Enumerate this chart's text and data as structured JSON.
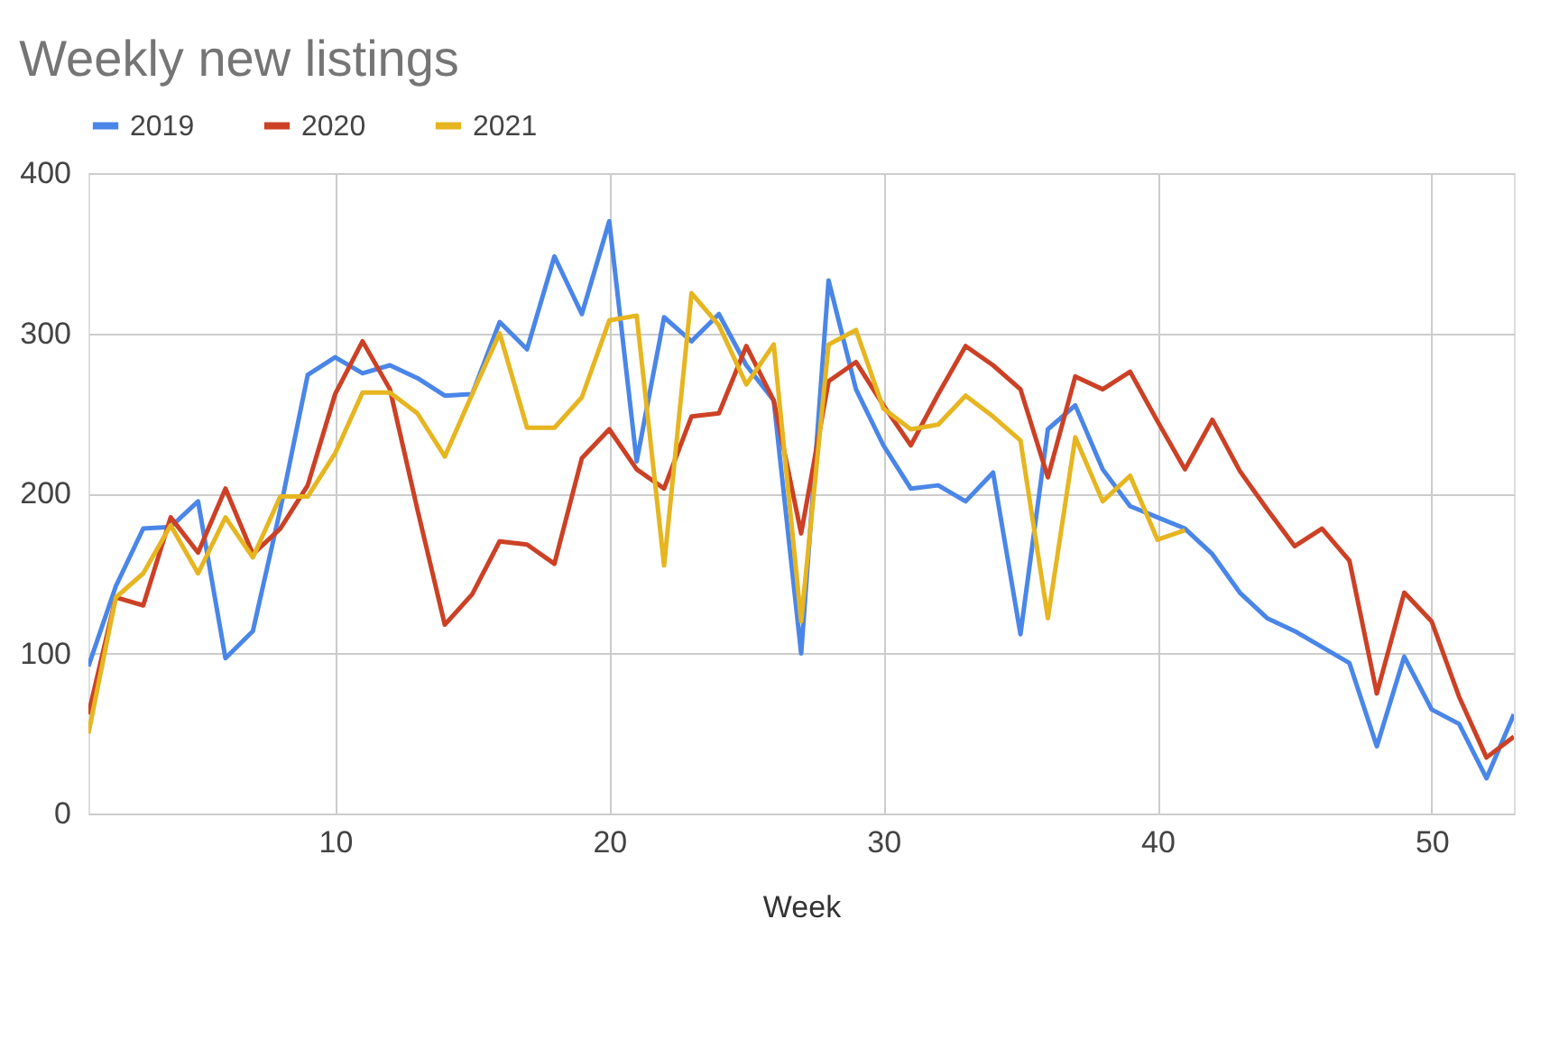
{
  "chart_data": {
    "type": "line",
    "title": "Weekly new listings",
    "xlabel": "Week",
    "x": [
      1,
      2,
      3,
      4,
      5,
      6,
      7,
      8,
      9,
      10,
      11,
      12,
      13,
      14,
      15,
      16,
      17,
      18,
      19,
      20,
      21,
      22,
      23,
      24,
      25,
      26,
      27,
      28,
      29,
      30,
      31,
      32,
      33,
      34,
      35,
      36,
      37,
      38,
      39,
      40,
      41,
      42,
      43,
      44,
      45,
      46,
      47,
      48,
      49,
      50,
      51,
      52,
      53
    ],
    "series": [
      {
        "name": "2019",
        "color": "#4a86e8",
        "values": [
          92,
          142,
          178,
          179,
          195,
          97,
          114,
          190,
          274,
          285,
          275,
          280,
          272,
          261,
          262,
          307,
          290,
          348,
          312,
          370,
          220,
          310,
          295,
          312,
          280,
          258,
          100,
          333,
          265,
          230,
          203,
          205,
          195,
          213,
          112,
          240,
          255,
          215,
          192,
          185,
          178,
          162,
          138,
          122,
          114,
          104,
          94,
          42,
          98,
          65,
          56,
          22,
          62
        ]
      },
      {
        "name": "2020",
        "color": "#cc4125",
        "values": [
          62,
          135,
          130,
          185,
          163,
          203,
          162,
          178,
          205,
          262,
          295,
          265,
          190,
          118,
          137,
          170,
          168,
          156,
          222,
          240,
          215,
          203,
          248,
          250,
          292,
          258,
          175,
          270,
          282,
          255,
          230,
          262,
          292,
          280,
          265,
          210,
          273,
          265,
          276,
          245,
          215,
          246,
          214,
          190,
          167,
          178,
          158,
          75,
          138,
          120,
          73,
          35,
          48
        ]
      },
      {
        "name": "2021",
        "color": "#e6b520",
        "values": [
          50,
          135,
          150,
          180,
          150,
          185,
          160,
          198,
          198,
          225,
          263,
          263,
          250,
          223,
          262,
          300,
          241,
          241,
          260,
          308,
          311,
          155,
          325,
          305,
          268,
          293,
          120,
          293,
          302,
          253,
          240,
          243,
          261,
          248,
          233,
          122,
          235,
          195,
          211,
          171,
          177,
          null,
          null,
          null,
          null,
          null,
          null,
          null,
          null,
          null,
          null,
          null,
          null
        ]
      }
    ],
    "xlim": [
      1,
      53
    ],
    "xticks": [
      10,
      20,
      30,
      40,
      50
    ],
    "ylim": [
      0,
      400
    ],
    "yticks": [
      0,
      100,
      200,
      300,
      400
    ],
    "grid": true,
    "legend": "top",
    "line_style": "solid",
    "marker": "none"
  }
}
